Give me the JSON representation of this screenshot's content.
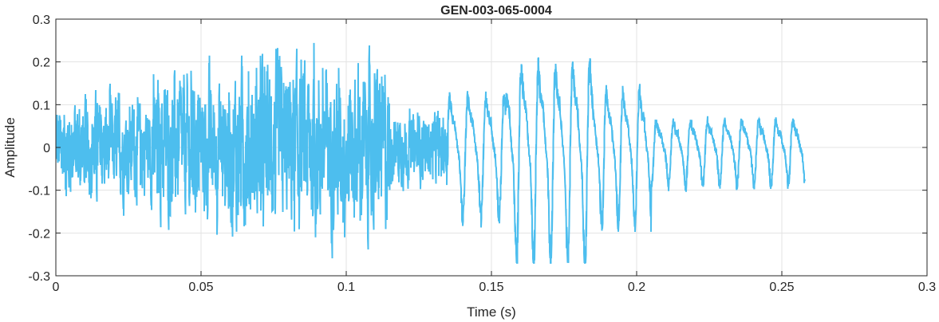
{
  "chart_data": {
    "type": "line",
    "title": "GEN-003-065-0004",
    "xlabel": "Time (s)",
    "ylabel": "Amplitude",
    "xlim": [
      0,
      0.3
    ],
    "ylim": [
      -0.3,
      0.3
    ],
    "xticks": [
      0,
      0.05,
      0.1,
      0.15,
      0.2,
      0.25,
      0.3
    ],
    "xtick_labels": [
      "0",
      "0.05",
      "0.1",
      "0.15",
      "0.2",
      "0.25",
      "0.3"
    ],
    "yticks": [
      -0.3,
      -0.2,
      -0.1,
      0,
      0.1,
      0.2,
      0.3
    ],
    "ytick_labels": [
      "-0.3",
      "-0.2",
      "-0.1",
      "0",
      "0.1",
      "0.2",
      "0.3"
    ],
    "grid": true,
    "line_color": "#4DBEEE",
    "series": [
      {
        "duration": 0.258,
        "sample_rate": 16000,
        "segments": [
          {
            "t_start": 0.0,
            "t_end": 0.033,
            "kind": "noise",
            "env": 0.115
          },
          {
            "t_start": 0.033,
            "t_end": 0.06,
            "kind": "noise",
            "env": 0.16
          },
          {
            "t_start": 0.06,
            "t_end": 0.115,
            "kind": "noise",
            "env": 0.19
          },
          {
            "t_start": 0.115,
            "t_end": 0.135,
            "kind": "noise",
            "env": 0.08
          },
          {
            "t_start": 0.135,
            "t_end": 0.155,
            "kind": "voiced",
            "env": 0.16,
            "f0": 160
          },
          {
            "t_start": 0.155,
            "t_end": 0.185,
            "kind": "voiced",
            "env": 0.26,
            "f0": 170
          },
          {
            "t_start": 0.185,
            "t_end": 0.205,
            "kind": "voiced",
            "env": 0.18,
            "f0": 175
          },
          {
            "t_start": 0.205,
            "t_end": 0.258,
            "kind": "voiced",
            "env": 0.085,
            "f0": 170
          }
        ],
        "peak_max": 0.265,
        "peak_min": -0.27
      }
    ]
  }
}
